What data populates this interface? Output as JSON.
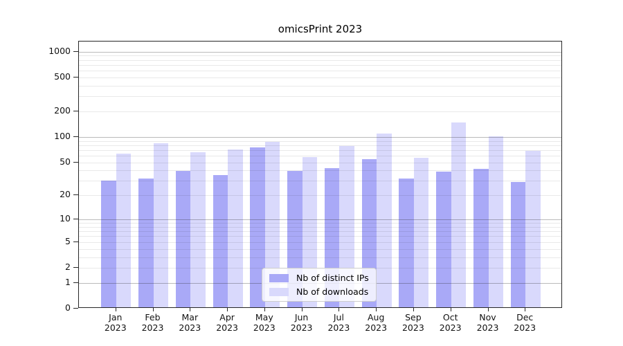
{
  "chart_data": {
    "type": "bar",
    "title": "omicsPrint 2023",
    "categories": [
      "Jan",
      "Feb",
      "Mar",
      "Apr",
      "May",
      "Jun",
      "Jul",
      "Aug",
      "Sep",
      "Oct",
      "Nov",
      "Dec"
    ],
    "year": "2023",
    "series": [
      {
        "name": "Nb of distinct IPs",
        "color": "#a9a9f7",
        "values": [
          29,
          31,
          38,
          34,
          72,
          38,
          41,
          53,
          31,
          37,
          40,
          28
        ]
      },
      {
        "name": "Nb of downloads",
        "color": "#d9d9fc",
        "values": [
          61,
          81,
          64,
          69,
          85,
          56,
          76,
          105,
          55,
          143,
          98,
          66
        ]
      }
    ],
    "yscale": "log10(value+1)",
    "ylim": [
      0,
      1300
    ],
    "yticks": [
      1000,
      500,
      200,
      100,
      50,
      20,
      10,
      5,
      2,
      1,
      0
    ],
    "grid": "horizontal major+minor",
    "legend_position": "lower center",
    "axis_color": "#262626",
    "grid_major_color": "rgba(40,40,40,0.32)",
    "grid_minor_color": "rgba(40,40,40,0.10)"
  }
}
